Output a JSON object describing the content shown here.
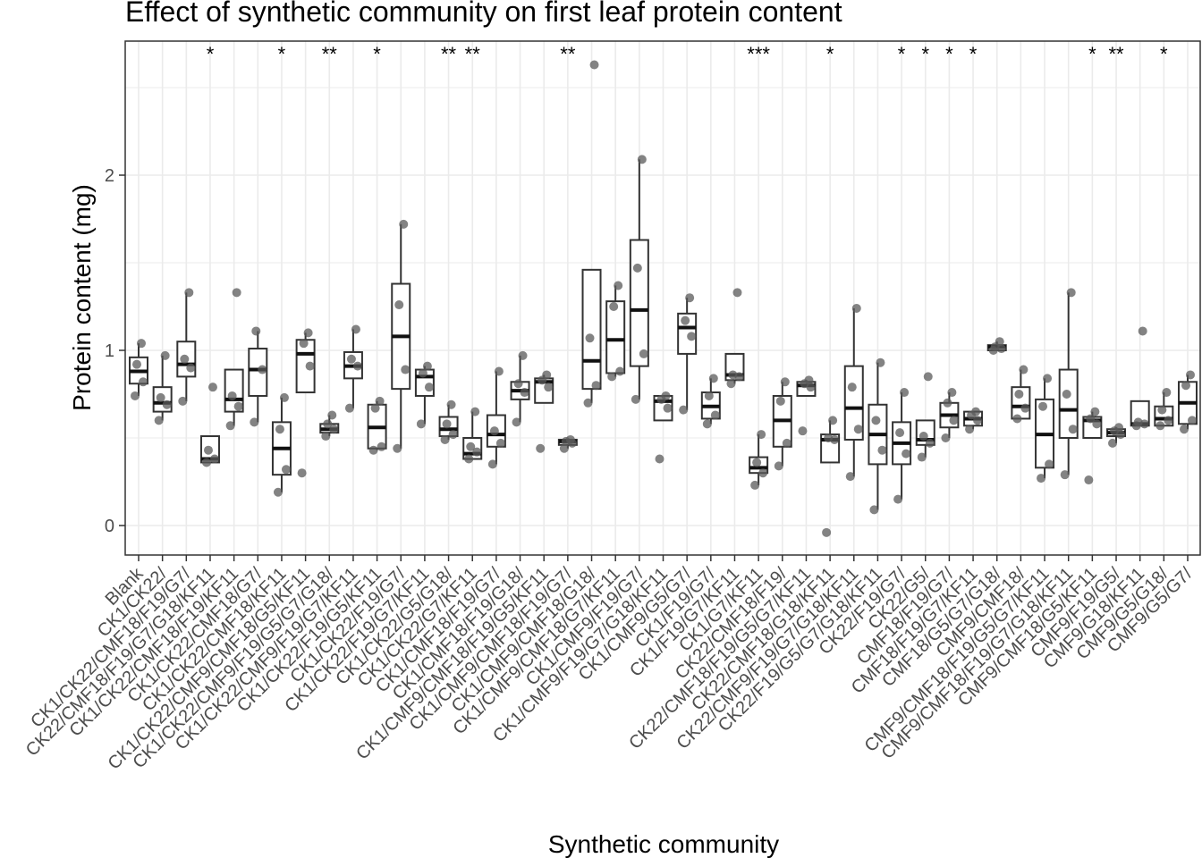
{
  "chart_data": {
    "type": "box",
    "title": "Effect of synthetic community on first leaf protein content",
    "xlabel": "Synthetic community",
    "ylabel": "Protein content (mg)",
    "ylim": [
      -0.17,
      2.77
    ],
    "yticks": [
      0,
      1,
      2
    ],
    "grid": true,
    "legend": "none",
    "colors": {
      "box": "#333333",
      "point": "#595959",
      "grid": "#ebebeb",
      "panel_border": "#333333"
    },
    "categories": [
      "Blank",
      "CK1/CK22/",
      "CK1/CK22/CMF18/F19/G7/",
      "CK22/CMF18/F19/G7/G18/KF11",
      "CK1/CK22/CMF18/F19/KF11",
      "CK1/CK22/CMF18/G7/",
      "CK1/CK22/CMF18/KF11",
      "CK1/CK22/CMF9/CMF18/G5/KF11",
      "CK1/CK22/CMF9/F19/G5/G7/G18/",
      "CK1/CK22/CMF9/F19/G7/KF11",
      "CK1/CK22/F19/G5/KF11",
      "CK1/CK22/F19/G7/",
      "CK1/CK22/F19/G7/KF11",
      "CK1/CK22/G5/G18/",
      "CK1/CK22/G7/KF11",
      "CK1/CMF18/F19/G7/",
      "CK1/CMF18/F19/G18/",
      "CK1/CMF9/CMF18/F19/G5/KF11",
      "CK1/CMF9/CMF18/F19/G7/",
      "CK1/CMF9/CMF18/G18/",
      "CK1/CMF9/CMF18/G7/KF11",
      "CK1/CMF9/F19/G7/",
      "CK1/CMF9/F19/G7/G18/KF11",
      "CK1/CMF9/G5/G7/",
      "CK1/F19/G7/",
      "CK1/F19/G7/KF11",
      "CK1/G7/KF11",
      "CK22/CMF18/F19/",
      "CK22/CMF18/F19/G5/G7/KF11",
      "CK22/CMF18/G18/KF11",
      "CK22/CMF9/F19/G7/G18/KF11",
      "CK22/F19/G5/G7/G18/KF11",
      "CK22/F19/G7/",
      "CK22/G5/",
      "CMF18/F19/G7/",
      "CMF18/F19/G7/KF11",
      "CMF18/G5/G7/G18/",
      "CMF9/CMF18/",
      "CMF9/CMF18/F19/G5/G7/KF11",
      "CMF9/CMF18/F19/G7/G18/KF11",
      "CMF9/CMF18/G5/KF11",
      "CMF9/F19/G5/",
      "CMF9/G18/KF11",
      "CMF9/G5/G18/",
      "CMF9/G5/G7/"
    ],
    "series": [
      {
        "q1": 0.81,
        "median": 0.88,
        "q3": 0.96,
        "wlo": 0.74,
        "whi": 1.04,
        "points": [
          0.74,
          0.82,
          0.92,
          1.04
        ],
        "sig": ""
      },
      {
        "q1": 0.65,
        "median": 0.7,
        "q3": 0.79,
        "wlo": 0.6,
        "whi": 0.97,
        "points": [
          0.6,
          0.69,
          0.73,
          0.97
        ],
        "sig": ""
      },
      {
        "q1": 0.85,
        "median": 0.92,
        "q3": 1.05,
        "wlo": 0.71,
        "whi": 1.33,
        "points": [
          0.71,
          0.9,
          0.95,
          1.33
        ],
        "sig": ""
      },
      {
        "q1": 0.36,
        "median": 0.38,
        "q3": 0.51,
        "wlo": 0.36,
        "whi": 0.51,
        "points": [
          0.36,
          0.38,
          0.43,
          0.79
        ],
        "sig": "*"
      },
      {
        "q1": 0.65,
        "median": 0.72,
        "q3": 0.89,
        "wlo": 0.57,
        "whi": 0.89,
        "points": [
          0.57,
          0.68,
          0.74,
          1.33
        ],
        "sig": ""
      },
      {
        "q1": 0.74,
        "median": 0.89,
        "q3": 1.01,
        "wlo": 0.59,
        "whi": 1.11,
        "points": [
          0.59,
          0.89,
          1.11
        ],
        "sig": ""
      },
      {
        "q1": 0.29,
        "median": 0.44,
        "q3": 0.59,
        "wlo": 0.19,
        "whi": 0.73,
        "points": [
          0.19,
          0.32,
          0.55,
          0.73
        ],
        "sig": "*"
      },
      {
        "q1": 0.76,
        "median": 0.98,
        "q3": 1.06,
        "wlo": 0.76,
        "whi": 1.1,
        "points": [
          0.3,
          0.91,
          1.04,
          1.1
        ],
        "sig": ""
      },
      {
        "q1": 0.53,
        "median": 0.55,
        "q3": 0.58,
        "wlo": 0.51,
        "whi": 0.63,
        "points": [
          0.51,
          0.55,
          0.58,
          0.63
        ],
        "sig": "**"
      },
      {
        "q1": 0.84,
        "median": 0.91,
        "q3": 0.99,
        "wlo": 0.67,
        "whi": 1.12,
        "points": [
          0.67,
          0.91,
          0.95,
          1.12
        ],
        "sig": ""
      },
      {
        "q1": 0.44,
        "median": 0.56,
        "q3": 0.69,
        "wlo": 0.43,
        "whi": 0.71,
        "points": [
          0.43,
          0.45,
          0.67,
          0.71
        ],
        "sig": "*"
      },
      {
        "q1": 0.78,
        "median": 1.08,
        "q3": 1.38,
        "wlo": 0.44,
        "whi": 1.72,
        "points": [
          0.44,
          0.89,
          1.26,
          1.72
        ],
        "sig": ""
      },
      {
        "q1": 0.74,
        "median": 0.85,
        "q3": 0.89,
        "wlo": 0.58,
        "whi": 0.91,
        "points": [
          0.58,
          0.79,
          0.87,
          0.91
        ],
        "sig": ""
      },
      {
        "q1": 0.51,
        "median": 0.55,
        "q3": 0.62,
        "wlo": 0.49,
        "whi": 0.69,
        "points": [
          0.49,
          0.52,
          0.58,
          0.69
        ],
        "sig": "**"
      },
      {
        "q1": 0.38,
        "median": 0.41,
        "q3": 0.5,
        "wlo": 0.38,
        "whi": 0.65,
        "points": [
          0.38,
          0.42,
          0.45,
          0.65
        ],
        "sig": "**"
      },
      {
        "q1": 0.45,
        "median": 0.52,
        "q3": 0.63,
        "wlo": 0.35,
        "whi": 0.88,
        "points": [
          0.35,
          0.47,
          0.54,
          0.88
        ],
        "sig": ""
      },
      {
        "q1": 0.72,
        "median": 0.77,
        "q3": 0.82,
        "wlo": 0.59,
        "whi": 0.97,
        "points": [
          0.59,
          0.76,
          0.81,
          0.97
        ],
        "sig": ""
      },
      {
        "q1": 0.7,
        "median": 0.82,
        "q3": 0.84,
        "wlo": 0.7,
        "whi": 0.86,
        "points": [
          0.44,
          0.79,
          0.83,
          0.86
        ],
        "sig": ""
      },
      {
        "q1": 0.46,
        "median": 0.48,
        "q3": 0.49,
        "wlo": 0.44,
        "whi": 0.49,
        "points": [
          0.44,
          0.47,
          0.48,
          0.49
        ],
        "sig": "**"
      },
      {
        "q1": 0.78,
        "median": 0.94,
        "q3": 1.46,
        "wlo": 0.7,
        "whi": 1.46,
        "points": [
          0.7,
          0.8,
          1.07,
          2.63
        ],
        "sig": ""
      },
      {
        "q1": 0.87,
        "median": 1.06,
        "q3": 1.28,
        "wlo": 0.85,
        "whi": 1.37,
        "points": [
          0.85,
          0.88,
          1.25,
          1.37
        ],
        "sig": ""
      },
      {
        "q1": 0.91,
        "median": 1.23,
        "q3": 1.63,
        "wlo": 0.72,
        "whi": 2.09,
        "points": [
          0.72,
          0.98,
          1.47,
          2.09
        ],
        "sig": ""
      },
      {
        "q1": 0.6,
        "median": 0.71,
        "q3": 0.74,
        "wlo": 0.6,
        "whi": 0.74,
        "points": [
          0.38,
          0.67,
          0.72,
          0.74
        ],
        "sig": ""
      },
      {
        "q1": 0.98,
        "median": 1.13,
        "q3": 1.21,
        "wlo": 0.66,
        "whi": 1.3,
        "points": [
          0.66,
          1.08,
          1.17,
          1.3
        ],
        "sig": ""
      },
      {
        "q1": 0.61,
        "median": 0.68,
        "q3": 0.76,
        "wlo": 0.58,
        "whi": 0.84,
        "points": [
          0.58,
          0.63,
          0.74,
          0.84
        ],
        "sig": ""
      },
      {
        "q1": 0.83,
        "median": 0.86,
        "q3": 0.98,
        "wlo": 0.81,
        "whi": 0.98,
        "points": [
          0.81,
          0.85,
          0.86,
          1.33
        ],
        "sig": ""
      },
      {
        "q1": 0.3,
        "median": 0.33,
        "q3": 0.39,
        "wlo": 0.23,
        "whi": 0.52,
        "points": [
          0.23,
          0.3,
          0.36,
          0.52
        ],
        "sig": "***"
      },
      {
        "q1": 0.45,
        "median": 0.6,
        "q3": 0.74,
        "wlo": 0.34,
        "whi": 0.82,
        "points": [
          0.34,
          0.47,
          0.71,
          0.82
        ],
        "sig": ""
      },
      {
        "q1": 0.74,
        "median": 0.8,
        "q3": 0.82,
        "wlo": 0.74,
        "whi": 0.83,
        "points": [
          0.54,
          0.79,
          0.81,
          0.83
        ],
        "sig": ""
      },
      {
        "q1": 0.36,
        "median": 0.49,
        "q3": 0.52,
        "wlo": 0.36,
        "whi": 0.6,
        "points": [
          -0.04,
          0.49,
          0.5,
          0.6
        ],
        "sig": "*"
      },
      {
        "q1": 0.49,
        "median": 0.67,
        "q3": 0.91,
        "wlo": 0.28,
        "whi": 1.24,
        "points": [
          0.28,
          0.55,
          0.79,
          1.24
        ],
        "sig": ""
      },
      {
        "q1": 0.35,
        "median": 0.52,
        "q3": 0.69,
        "wlo": 0.09,
        "whi": 0.93,
        "points": [
          0.09,
          0.43,
          0.6,
          0.93
        ],
        "sig": ""
      },
      {
        "q1": 0.35,
        "median": 0.47,
        "q3": 0.59,
        "wlo": 0.15,
        "whi": 0.76,
        "points": [
          0.15,
          0.41,
          0.53,
          0.76
        ],
        "sig": "*"
      },
      {
        "q1": 0.46,
        "median": 0.49,
        "q3": 0.6,
        "wlo": 0.39,
        "whi": 0.6,
        "points": [
          0.39,
          0.47,
          0.51,
          0.85
        ],
        "sig": "*"
      },
      {
        "q1": 0.56,
        "median": 0.63,
        "q3": 0.7,
        "wlo": 0.5,
        "whi": 0.76,
        "points": [
          0.5,
          0.6,
          0.7,
          0.76
        ],
        "sig": "*"
      },
      {
        "q1": 0.57,
        "median": 0.61,
        "q3": 0.65,
        "wlo": 0.55,
        "whi": 0.65,
        "points": [
          0.55,
          0.6,
          0.63,
          0.65
        ],
        "sig": "*"
      },
      {
        "q1": 1.0,
        "median": 1.02,
        "q3": 1.03,
        "wlo": 1.0,
        "whi": 1.05,
        "points": [
          1.0,
          1.01,
          1.02,
          1.05
        ],
        "sig": ""
      },
      {
        "q1": 0.61,
        "median": 0.68,
        "q3": 0.79,
        "wlo": 0.61,
        "whi": 0.89,
        "points": [
          0.61,
          0.67,
          0.75,
          0.89
        ],
        "sig": ""
      },
      {
        "q1": 0.33,
        "median": 0.52,
        "q3": 0.72,
        "wlo": 0.27,
        "whi": 0.84,
        "points": [
          0.27,
          0.35,
          0.68,
          0.84
        ],
        "sig": ""
      },
      {
        "q1": 0.5,
        "median": 0.66,
        "q3": 0.89,
        "wlo": 0.29,
        "whi": 1.33,
        "points": [
          0.29,
          0.55,
          0.75,
          1.33
        ],
        "sig": ""
      },
      {
        "q1": 0.5,
        "median": 0.6,
        "q3": 0.62,
        "wlo": 0.5,
        "whi": 0.65,
        "points": [
          0.26,
          0.58,
          0.61,
          0.65
        ],
        "sig": "*"
      },
      {
        "q1": 0.51,
        "median": 0.53,
        "q3": 0.55,
        "wlo": 0.47,
        "whi": 0.56,
        "points": [
          0.47,
          0.52,
          0.54,
          0.56
        ],
        "sig": "**"
      },
      {
        "q1": 0.57,
        "median": 0.58,
        "q3": 0.71,
        "wlo": 0.57,
        "whi": 0.71,
        "points": [
          0.57,
          0.58,
          0.59,
          1.11
        ],
        "sig": ""
      },
      {
        "q1": 0.57,
        "median": 0.61,
        "q3": 0.68,
        "wlo": 0.57,
        "whi": 0.76,
        "points": [
          0.57,
          0.6,
          0.66,
          0.76
        ],
        "sig": "*"
      },
      {
        "q1": 0.58,
        "median": 0.7,
        "q3": 0.82,
        "wlo": 0.55,
        "whi": 0.86,
        "points": [
          0.55,
          0.6,
          0.8,
          0.86
        ],
        "sig": ""
      }
    ]
  }
}
